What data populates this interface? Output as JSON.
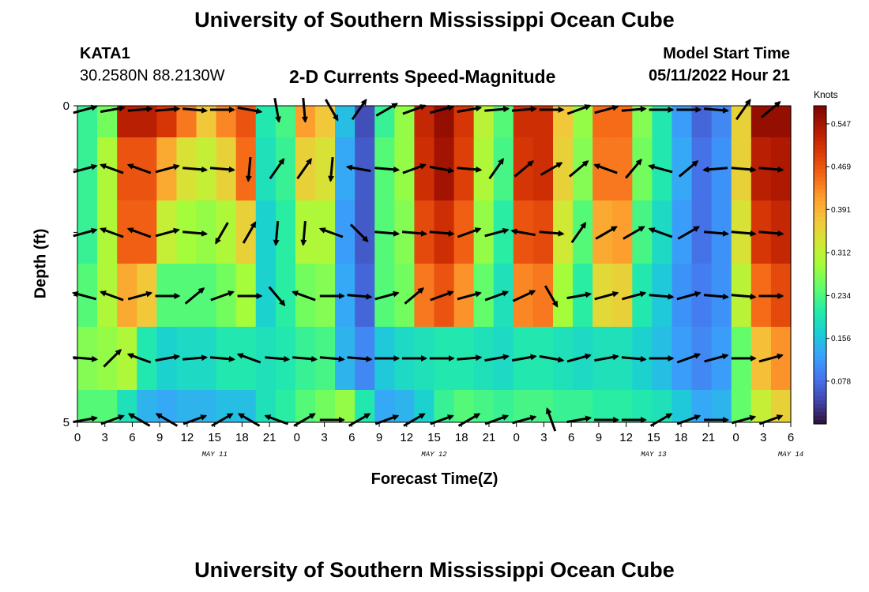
{
  "page": {
    "title_top": "University of Southern Mississippi Ocean Cube",
    "title_bottom": "University of Southern Mississippi Ocean Cube",
    "station_id": "KATA1",
    "coordinates": "30.2580N  88.2130W",
    "subtitle": "2-D Currents Speed-Magnitude",
    "model_start_label": "Model Start Time",
    "model_start_value": "05/11/2022 Hour 21"
  },
  "chart_data": {
    "type": "heatmap",
    "title": "2-D Currents Speed-Magnitude",
    "xlabel": "Forecast Time(Z)",
    "ylabel": "Depth (ft)",
    "units_label": "Knots",
    "x_tick_labels": [
      "0",
      "3",
      "6",
      "9",
      "12",
      "15",
      "18",
      "21",
      "0",
      "3",
      "6",
      "9",
      "12",
      "15",
      "18",
      "21",
      "0",
      "3",
      "6",
      "9",
      "12",
      "15",
      "18",
      "21",
      "0",
      "3",
      "6"
    ],
    "day_labels": [
      {
        "label": "MAY 11",
        "at_hour": 15
      },
      {
        "label": "MAY 12",
        "at_hour": 39
      },
      {
        "label": "MAY 13",
        "at_hour": 63
      },
      {
        "label": "MAY 14",
        "at_hour": 78
      }
    ],
    "x_hours_range": [
      0,
      78
    ],
    "y_tick_labels": [
      "0",
      "5"
    ],
    "y_range": [
      0,
      5
    ],
    "depth_levels": 5,
    "colorbar": {
      "min": 0.0,
      "max": 0.58,
      "ticks": [
        "0.547",
        "0.469",
        "0.391",
        "0.312",
        "0.234",
        "0.156",
        "0.078"
      ],
      "colors": [
        "#30123b",
        "#4145ab",
        "#4675ed",
        "#39a2fc",
        "#1bcfd4",
        "#24eca6",
        "#61fc6c",
        "#a4fc3b",
        "#d1e834",
        "#f3c63a",
        "#fe9b2d",
        "#f36315",
        "#d93806",
        "#b11901",
        "#7a0403"
      ]
    },
    "speed_grid_knots": [
      [
        0.22,
        0.26,
        0.53,
        0.53,
        0.5,
        0.44,
        0.37,
        0.43,
        0.47,
        0.2,
        0.23,
        0.41,
        0.37,
        0.15,
        0.05,
        0.22,
        0.28,
        0.52,
        0.56,
        0.5,
        0.31,
        0.24,
        0.51,
        0.51,
        0.37,
        0.28,
        0.45,
        0.45,
        0.27,
        0.2,
        0.12,
        0.07,
        0.1,
        0.36,
        0.56,
        0.56
      ],
      [
        0.22,
        0.3,
        0.47,
        0.47,
        0.4,
        0.34,
        0.32,
        0.36,
        0.45,
        0.19,
        0.22,
        0.36,
        0.34,
        0.13,
        0.06,
        0.24,
        0.28,
        0.51,
        0.55,
        0.49,
        0.3,
        0.23,
        0.5,
        0.51,
        0.36,
        0.27,
        0.44,
        0.44,
        0.26,
        0.2,
        0.13,
        0.08,
        0.11,
        0.36,
        0.53,
        0.54
      ],
      [
        0.22,
        0.3,
        0.46,
        0.46,
        0.32,
        0.29,
        0.28,
        0.3,
        0.36,
        0.17,
        0.21,
        0.3,
        0.3,
        0.12,
        0.06,
        0.24,
        0.27,
        0.48,
        0.51,
        0.46,
        0.28,
        0.21,
        0.47,
        0.48,
        0.33,
        0.24,
        0.4,
        0.41,
        0.23,
        0.18,
        0.12,
        0.08,
        0.11,
        0.34,
        0.5,
        0.52
      ],
      [
        0.24,
        0.3,
        0.4,
        0.37,
        0.24,
        0.24,
        0.24,
        0.26,
        0.29,
        0.17,
        0.21,
        0.26,
        0.27,
        0.13,
        0.07,
        0.24,
        0.26,
        0.44,
        0.47,
        0.42,
        0.25,
        0.19,
        0.43,
        0.44,
        0.29,
        0.21,
        0.35,
        0.36,
        0.2,
        0.16,
        0.11,
        0.09,
        0.11,
        0.31,
        0.45,
        0.48
      ],
      [
        0.27,
        0.28,
        0.3,
        0.2,
        0.17,
        0.18,
        0.18,
        0.2,
        0.2,
        0.19,
        0.2,
        0.22,
        0.23,
        0.14,
        0.1,
        0.16,
        0.18,
        0.19,
        0.2,
        0.2,
        0.19,
        0.18,
        0.2,
        0.2,
        0.19,
        0.18,
        0.19,
        0.19,
        0.17,
        0.15,
        0.12,
        0.1,
        0.12,
        0.25,
        0.38,
        0.42
      ]
    ],
    "bottom_band_knots": [
      0.24,
      0.24,
      0.19,
      0.14,
      0.13,
      0.14,
      0.14,
      0.15,
      0.15,
      0.19,
      0.21,
      0.24,
      0.26,
      0.28,
      0.2,
      0.13,
      0.14,
      0.17,
      0.22,
      0.24,
      0.23,
      0.22,
      0.23,
      0.23,
      0.22,
      0.22,
      0.21,
      0.21,
      0.2,
      0.19,
      0.16,
      0.13,
      0.14,
      0.25,
      0.32,
      0.36
    ],
    "vector_rows": [
      {
        "depth": 0,
        "hours": [
          1,
          4,
          7,
          10,
          13,
          16,
          19,
          22,
          25,
          28,
          31,
          34,
          37,
          40,
          43,
          46,
          49,
          52,
          55,
          58,
          61,
          64,
          67,
          70,
          73,
          76,
          79
        ],
        "angles_deg": [
          -15,
          -10,
          -5,
          -5,
          5,
          0,
          10,
          80,
          85,
          60,
          -55,
          -30,
          -20,
          -15,
          -10,
          -5,
          -5,
          0,
          -20,
          -15,
          -5,
          0,
          0,
          5,
          -55,
          -40,
          0
        ]
      },
      {
        "depth": 1,
        "hours": [
          1,
          4,
          7,
          10,
          13,
          16,
          19,
          22,
          25,
          28,
          31,
          34,
          37,
          40,
          43,
          46,
          49,
          52,
          55,
          58,
          61,
          64,
          67,
          70,
          73,
          76,
          79
        ],
        "angles_deg": [
          -15,
          -160,
          -160,
          -15,
          5,
          5,
          95,
          -55,
          -55,
          95,
          -170,
          5,
          -20,
          10,
          5,
          -55,
          -40,
          -30,
          -40,
          -160,
          -50,
          -165,
          -40,
          175,
          5,
          5,
          5
        ]
      },
      {
        "depth": 2,
        "hours": [
          1,
          4,
          7,
          10,
          13,
          16,
          19,
          22,
          25,
          28,
          31,
          34,
          37,
          40,
          43,
          46,
          49,
          52,
          55,
          58,
          61,
          64,
          67,
          70,
          73,
          76,
          79
        ],
        "angles_deg": [
          -15,
          -160,
          -160,
          -15,
          5,
          120,
          -60,
          95,
          95,
          -160,
          45,
          5,
          5,
          5,
          -20,
          -15,
          -170,
          5,
          -55,
          -30,
          -30,
          -160,
          -30,
          5,
          5,
          5,
          5
        ]
      },
      {
        "depth": 3,
        "hours": [
          1,
          4,
          7,
          10,
          13,
          16,
          19,
          22,
          25,
          28,
          31,
          34,
          37,
          40,
          43,
          46,
          49,
          52,
          55,
          58,
          61,
          64,
          67,
          70,
          73,
          76,
          79
        ],
        "angles_deg": [
          -165,
          -160,
          -15,
          0,
          -40,
          -20,
          0,
          50,
          -160,
          0,
          5,
          -15,
          -40,
          -20,
          -15,
          -20,
          -25,
          60,
          -10,
          -15,
          -15,
          5,
          -15,
          5,
          5,
          0,
          0
        ]
      },
      {
        "depth": 4,
        "hours": [
          1,
          4,
          7,
          10,
          13,
          16,
          19,
          22,
          25,
          28,
          31,
          34,
          37,
          40,
          43,
          46,
          49,
          52,
          55,
          58,
          61,
          64,
          67,
          70,
          73,
          76,
          79
        ],
        "angles_deg": [
          5,
          -45,
          -160,
          -10,
          -5,
          5,
          -160,
          5,
          5,
          5,
          5,
          0,
          0,
          0,
          -5,
          -10,
          -10,
          10,
          -15,
          -10,
          5,
          0,
          -20,
          -15,
          0,
          -15,
          0
        ]
      },
      {
        "depth": 5,
        "hours": [
          1,
          4,
          7,
          10,
          13,
          16,
          19,
          22,
          25,
          28,
          31,
          34,
          37,
          40,
          43,
          46,
          49,
          52,
          55,
          58,
          61,
          64,
          67,
          70,
          73,
          76,
          79
        ],
        "angles_deg": [
          -10,
          -20,
          -150,
          -150,
          -20,
          -30,
          -150,
          -160,
          -30,
          0,
          -30,
          -20,
          -30,
          -20,
          -30,
          -20,
          -15,
          -110,
          -10,
          0,
          0,
          -30,
          -20,
          0,
          -15,
          -20,
          -10
        ]
      }
    ]
  }
}
